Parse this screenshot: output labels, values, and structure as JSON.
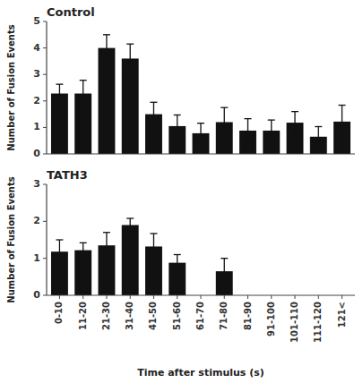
{
  "chart_data": [
    {
      "type": "bar",
      "title": "Control",
      "categories": [
        "0-10",
        "11-20",
        "21-30",
        "31-40",
        "41-50",
        "51-60",
        "61-70",
        "71-80",
        "81-90",
        "91-100",
        "101-110",
        "111-120",
        "121<"
      ],
      "values": [
        2.28,
        2.28,
        4.0,
        3.6,
        1.5,
        1.05,
        0.78,
        1.2,
        0.88,
        0.88,
        1.18,
        0.65,
        1.22
      ],
      "errors": [
        0.35,
        0.5,
        0.5,
        0.55,
        0.45,
        0.42,
        0.38,
        0.55,
        0.45,
        0.4,
        0.42,
        0.38,
        0.62
      ],
      "color": "#111111",
      "ylabel": "Number of Fusion Events",
      "ylim": [
        0,
        5
      ],
      "yticks": [
        0,
        1,
        2,
        3,
        4,
        5
      ],
      "tick_labels": "y"
    },
    {
      "type": "bar",
      "title": "TATH3",
      "categories": [
        "0-10",
        "11-20",
        "21-30",
        "31-40",
        "41-50",
        "51-60",
        "61-70",
        "71-80",
        "81-90",
        "91-100",
        "101-110",
        "111-120",
        "121<"
      ],
      "values": [
        1.18,
        1.22,
        1.35,
        1.9,
        1.32,
        0.88,
        0.0,
        0.65,
        0.0,
        0.0,
        0.0,
        0.0,
        0.0
      ],
      "errors": [
        0.32,
        0.2,
        0.35,
        0.18,
        0.35,
        0.22,
        0.0,
        0.35,
        0.0,
        0.0,
        0.0,
        0.0,
        0.0
      ],
      "color": "#111111",
      "ylabel": "Number of Fusion Events",
      "xlabel": "Time after stimulus (s)",
      "ylim": [
        0,
        3
      ],
      "yticks": [
        0,
        1,
        2,
        3
      ]
    }
  ]
}
